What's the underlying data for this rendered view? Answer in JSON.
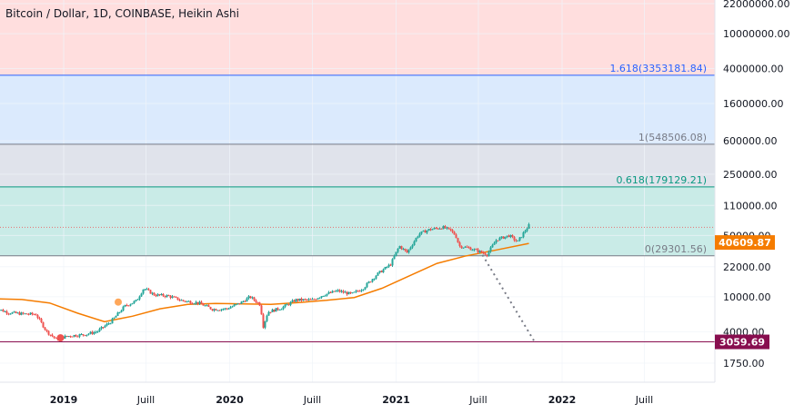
{
  "chart_data": {
    "type": "candlestick",
    "title": "Bitcoin / Dollar, 1D, COINBASE, Heikin Ashi",
    "y_scale": "log",
    "ylim": [
      1000,
      30000000
    ],
    "y_ticks": [
      {
        "value": 22000000,
        "label": "22000000.00"
      },
      {
        "value": 10000000,
        "label": "10000000.00"
      },
      {
        "value": 4000000,
        "label": "4000000.00"
      },
      {
        "value": 1600000,
        "label": "1600000.00"
      },
      {
        "value": 600000,
        "label": "600000.00"
      },
      {
        "value": 250000,
        "label": "250000.00"
      },
      {
        "value": 110000,
        "label": "110000.00"
      },
      {
        "value": 50000,
        "label": "50000.00"
      },
      {
        "value": 22000,
        "label": "22000.00"
      },
      {
        "value": 10000,
        "label": "10000.00"
      },
      {
        "value": 4000,
        "label": "4000.00"
      },
      {
        "value": 1750,
        "label": "1750.00"
      }
    ],
    "xlim": [
      "2018-08-01",
      "2022-12-31"
    ],
    "x_ticks": [
      {
        "date": "2019-01-01",
        "label": "2019",
        "bold": true
      },
      {
        "date": "2019-07-01",
        "label": "Juill",
        "bold": false
      },
      {
        "date": "2020-01-01",
        "label": "2020",
        "bold": true
      },
      {
        "date": "2020-07-01",
        "label": "Juill",
        "bold": false
      },
      {
        "date": "2021-01-01",
        "label": "2021",
        "bold": true
      },
      {
        "date": "2021-07-01",
        "label": "Juill",
        "bold": false
      },
      {
        "date": "2022-01-01",
        "label": "2022",
        "bold": true
      },
      {
        "date": "2022-07-01",
        "label": "Juill",
        "bold": false
      }
    ],
    "price_path": [
      [
        "2018-08-01",
        7500
      ],
      [
        "2018-09-01",
        6600
      ],
      [
        "2018-10-01",
        6400
      ],
      [
        "2018-11-01",
        6300
      ],
      [
        "2018-11-25",
        4000
      ],
      [
        "2018-12-15",
        3300
      ],
      [
        "2019-01-15",
        3600
      ],
      [
        "2019-02-15",
        3700
      ],
      [
        "2019-03-15",
        4000
      ],
      [
        "2019-04-15",
        5200
      ],
      [
        "2019-05-15",
        7800
      ],
      [
        "2019-06-10",
        9000
      ],
      [
        "2019-06-26",
        12500
      ],
      [
        "2019-07-20",
        10500
      ],
      [
        "2019-08-20",
        10200
      ],
      [
        "2019-09-20",
        9000
      ],
      [
        "2019-10-25",
        8500
      ],
      [
        "2019-11-25",
        7200
      ],
      [
        "2019-12-25",
        7300
      ],
      [
        "2020-01-25",
        8500
      ],
      [
        "2020-02-15",
        10000
      ],
      [
        "2020-03-10",
        8000
      ],
      [
        "2020-03-13",
        4300
      ],
      [
        "2020-03-25",
        6700
      ],
      [
        "2020-04-25",
        7500
      ],
      [
        "2020-05-25",
        9200
      ],
      [
        "2020-07-01",
        9200
      ],
      [
        "2020-07-25",
        10500
      ],
      [
        "2020-08-25",
        11700
      ],
      [
        "2020-09-25",
        10700
      ],
      [
        "2020-10-20",
        12500
      ],
      [
        "2020-11-20",
        18000
      ],
      [
        "2020-12-20",
        23500
      ],
      [
        "2021-01-08",
        38000
      ],
      [
        "2021-01-25",
        32000
      ],
      [
        "2021-02-20",
        52000
      ],
      [
        "2021-03-13",
        58000
      ],
      [
        "2021-04-14",
        62000
      ],
      [
        "2021-05-01",
        57000
      ],
      [
        "2021-05-12",
        50000
      ],
      [
        "2021-05-20",
        38000
      ],
      [
        "2021-06-10",
        36000
      ],
      [
        "2021-06-25",
        34000
      ],
      [
        "2021-07-20",
        30500
      ],
      [
        "2021-08-10",
        45000
      ],
      [
        "2021-09-07",
        50000
      ],
      [
        "2021-09-25",
        42000
      ],
      [
        "2021-10-10",
        55000
      ],
      [
        "2021-10-20",
        65000
      ]
    ],
    "moving_average": {
      "color": "#f57c00",
      "points": [
        [
          "2018-08-01",
          9500
        ],
        [
          "2018-10-01",
          9300
        ],
        [
          "2018-12-01",
          8500
        ],
        [
          "2019-02-01",
          6500
        ],
        [
          "2019-04-01",
          5200
        ],
        [
          "2019-06-01",
          6000
        ],
        [
          "2019-08-01",
          7300
        ],
        [
          "2019-10-01",
          8200
        ],
        [
          "2019-12-01",
          8400
        ],
        [
          "2020-02-01",
          8300
        ],
        [
          "2020-04-01",
          8200
        ],
        [
          "2020-06-01",
          8600
        ],
        [
          "2020-08-01",
          9100
        ],
        [
          "2020-10-01",
          9800
        ],
        [
          "2020-12-01",
          12500
        ],
        [
          "2021-02-01",
          17500
        ],
        [
          "2021-04-01",
          24000
        ],
        [
          "2021-06-01",
          29000
        ],
        [
          "2021-08-01",
          33500
        ],
        [
          "2021-10-20",
          40609.87
        ]
      ]
    },
    "fibonacci_levels": [
      {
        "ratio": 1.618,
        "value": 3353181.84,
        "label": "1.618(3353181.84)",
        "color": "#2962ff",
        "label_color": "#2962ff"
      },
      {
        "ratio": 1,
        "value": 548506.08,
        "label": "1(548506.08)",
        "color": "#787b86",
        "label_color": "#787b86"
      },
      {
        "ratio": 0.618,
        "value": 179129.21,
        "label": "0.618(179129.21)",
        "color": "#089981",
        "label_color": "#089981"
      },
      {
        "ratio": 0,
        "value": 29301.56,
        "label": "0(29301.56)",
        "color": "#787b86",
        "label_color": "#787b86"
      }
    ],
    "fib_zones": [
      {
        "from": 3353181.84,
        "to": 30000000,
        "color": "#ffdede"
      },
      {
        "from": 548506.08,
        "to": 3353181.84,
        "color": "#dbeafd"
      },
      {
        "from": 179129.21,
        "to": 548506.08,
        "color": "#e0e3eb"
      },
      {
        "from": 29301.56,
        "to": 179129.21,
        "color": "#c9ebe7"
      }
    ],
    "horizontal_lines": [
      {
        "value": 3059.69,
        "label": "3059.69",
        "color": "#880e4f",
        "badge_color": "#880e4f"
      }
    ],
    "current_price": {
      "value": 62000,
      "line_color": "#e57373"
    },
    "ma_badge": {
      "value": 40609.87,
      "label": "40609.87",
      "color": "#f57c00"
    },
    "trend_line": {
      "from": [
        "2021-07-10",
        30000
      ],
      "to": [
        "2021-11-01",
        3100
      ],
      "color": "#787b86"
    },
    "markers": [
      {
        "date": "2018-08-05",
        "value": 6200,
        "color": "#81c784"
      },
      {
        "date": "2018-12-25",
        "value": 3400,
        "color": "#ef5350"
      },
      {
        "date": "2019-05-01",
        "value": 8700,
        "color": "#ffa75a"
      }
    ],
    "candle_colors": {
      "up": "#26a69a",
      "down": "#ef5350"
    }
  }
}
